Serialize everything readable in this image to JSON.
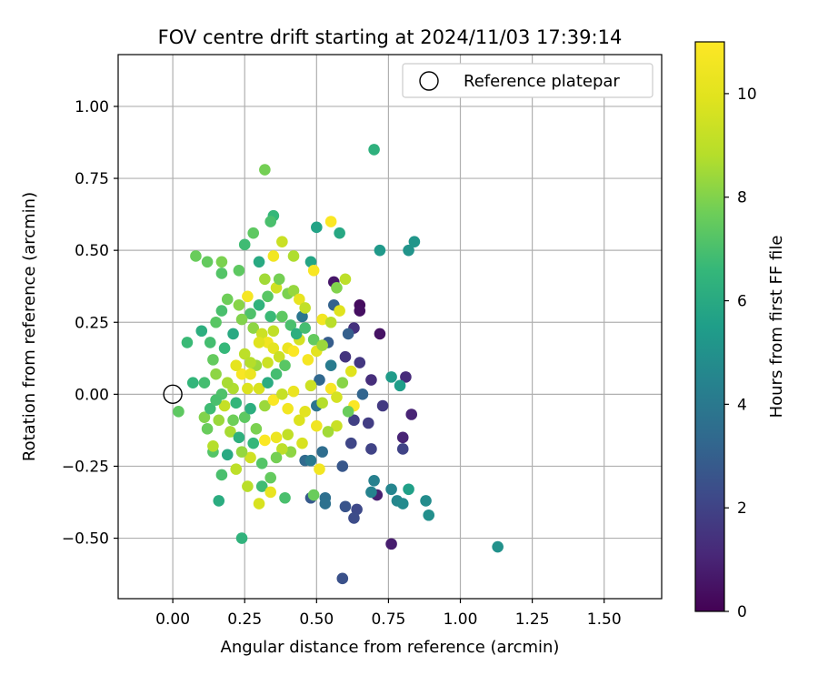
{
  "chart_data": {
    "type": "scatter",
    "title": "FOV centre drift starting at 2024/11/03 17:39:14",
    "xlabel": "Angular distance from reference (arcmin)",
    "ylabel": "Rotation from reference (arcmin)",
    "xlim": [
      -0.19,
      1.7
    ],
    "ylim": [
      -0.71,
      1.18
    ],
    "xticks": [
      0.0,
      0.25,
      0.5,
      0.75,
      1.0,
      1.25,
      1.5
    ],
    "xtick_labels": [
      "0.00",
      "0.25",
      "0.50",
      "0.75",
      "1.00",
      "1.25",
      "1.50"
    ],
    "yticks": [
      -0.5,
      -0.25,
      0.0,
      0.25,
      0.5,
      0.75,
      1.0
    ],
    "ytick_labels": [
      "−0.50",
      "−0.25",
      "0.00",
      "0.25",
      "0.50",
      "0.75",
      "1.00"
    ],
    "grid": true,
    "legend": {
      "placement": "upper-right",
      "entries": [
        {
          "label": "Reference platepar",
          "marker": "open-circle"
        }
      ]
    },
    "reference_point": {
      "x": 0.0,
      "y": 0.0
    },
    "colorbar": {
      "label": "Hours from first FF file",
      "colormap": "viridis",
      "range": [
        0,
        11
      ],
      "ticks": [
        0,
        2,
        4,
        6,
        8,
        10
      ],
      "tick_labels": [
        "0",
        "2",
        "4",
        "6",
        "8",
        "10"
      ]
    },
    "points": [
      {
        "x": 0.65,
        "y": 0.31,
        "c": 0.3
      },
      {
        "x": 0.65,
        "y": 0.29,
        "c": 0.4
      },
      {
        "x": 0.72,
        "y": 0.21,
        "c": 0.5
      },
      {
        "x": 0.56,
        "y": 0.39,
        "c": 0.6
      },
      {
        "x": 0.76,
        "y": -0.52,
        "c": 0.8
      },
      {
        "x": 0.71,
        "y": -0.35,
        "c": 0.9
      },
      {
        "x": 0.8,
        "y": -0.15,
        "c": 1.0
      },
      {
        "x": 0.83,
        "y": -0.07,
        "c": 1.0
      },
      {
        "x": 0.81,
        "y": 0.06,
        "c": 1.2
      },
      {
        "x": 0.69,
        "y": 0.05,
        "c": 1.3
      },
      {
        "x": 0.63,
        "y": 0.23,
        "c": 1.4
      },
      {
        "x": 0.6,
        "y": 0.13,
        "c": 1.5
      },
      {
        "x": 0.65,
        "y": 0.11,
        "c": 1.6
      },
      {
        "x": 0.73,
        "y": -0.04,
        "c": 1.7
      },
      {
        "x": 0.68,
        "y": -0.1,
        "c": 1.8
      },
      {
        "x": 0.63,
        "y": -0.09,
        "c": 1.9
      },
      {
        "x": 0.8,
        "y": -0.19,
        "c": 2.0
      },
      {
        "x": 0.69,
        "y": -0.19,
        "c": 2.0
      },
      {
        "x": 0.62,
        "y": -0.17,
        "c": 2.1
      },
      {
        "x": 0.64,
        "y": -0.4,
        "c": 2.2
      },
      {
        "x": 0.63,
        "y": -0.43,
        "c": 2.3
      },
      {
        "x": 0.59,
        "y": -0.64,
        "c": 2.5
      },
      {
        "x": 0.6,
        "y": -0.39,
        "c": 2.6
      },
      {
        "x": 0.59,
        "y": -0.25,
        "c": 2.7
      },
      {
        "x": 0.48,
        "y": -0.36,
        "c": 2.8
      },
      {
        "x": 0.54,
        "y": 0.18,
        "c": 2.9
      },
      {
        "x": 0.61,
        "y": 0.21,
        "c": 3.0
      },
      {
        "x": 0.56,
        "y": 0.31,
        "c": 3.1
      },
      {
        "x": 0.66,
        "y": 0.0,
        "c": 3.2
      },
      {
        "x": 0.51,
        "y": 0.05,
        "c": 3.3
      },
      {
        "x": 0.46,
        "y": -0.23,
        "c": 3.4
      },
      {
        "x": 0.52,
        "y": -0.2,
        "c": 3.5
      },
      {
        "x": 0.53,
        "y": -0.36,
        "c": 3.6
      },
      {
        "x": 0.53,
        "y": -0.38,
        "c": 3.7
      },
      {
        "x": 0.5,
        "y": -0.04,
        "c": 3.8
      },
      {
        "x": 0.45,
        "y": 0.27,
        "c": 3.9
      },
      {
        "x": 0.48,
        "y": -0.23,
        "c": 4.0
      },
      {
        "x": 0.55,
        "y": 0.1,
        "c": 4.1
      },
      {
        "x": 0.7,
        "y": -0.3,
        "c": 4.3
      },
      {
        "x": 0.69,
        "y": -0.34,
        "c": 4.4
      },
      {
        "x": 0.76,
        "y": -0.33,
        "c": 4.5
      },
      {
        "x": 0.78,
        "y": -0.37,
        "c": 4.6
      },
      {
        "x": 0.8,
        "y": -0.38,
        "c": 4.7
      },
      {
        "x": 0.88,
        "y": -0.37,
        "c": 4.8
      },
      {
        "x": 0.89,
        "y": -0.42,
        "c": 4.9
      },
      {
        "x": 1.13,
        "y": -0.53,
        "c": 5.0
      },
      {
        "x": 0.82,
        "y": 0.5,
        "c": 5.1
      },
      {
        "x": 0.84,
        "y": 0.53,
        "c": 5.2
      },
      {
        "x": 0.72,
        "y": 0.5,
        "c": 5.3
      },
      {
        "x": 0.76,
        "y": 0.06,
        "c": 5.4
      },
      {
        "x": 0.79,
        "y": 0.03,
        "c": 5.5
      },
      {
        "x": 0.82,
        "y": -0.33,
        "c": 5.6
      },
      {
        "x": 0.7,
        "y": 0.85,
        "c": 6.3
      },
      {
        "x": 0.58,
        "y": 0.56,
        "c": 5.9
      },
      {
        "x": 0.5,
        "y": 0.58,
        "c": 5.7
      },
      {
        "x": 0.48,
        "y": 0.46,
        "c": 5.8
      },
      {
        "x": 0.3,
        "y": 0.46,
        "c": 6.0
      },
      {
        "x": 0.35,
        "y": 0.62,
        "c": 6.6
      },
      {
        "x": 0.34,
        "y": 0.6,
        "c": 7.0
      },
      {
        "x": 0.32,
        "y": 0.78,
        "c": 7.8
      },
      {
        "x": 0.28,
        "y": 0.56,
        "c": 7.4
      },
      {
        "x": 0.25,
        "y": 0.52,
        "c": 6.8
      },
      {
        "x": 0.08,
        "y": 0.48,
        "c": 7.6
      },
      {
        "x": 0.12,
        "y": 0.46,
        "c": 7.5
      },
      {
        "x": 0.17,
        "y": 0.46,
        "c": 7.9
      },
      {
        "x": 0.17,
        "y": 0.42,
        "c": 7.2
      },
      {
        "x": 0.23,
        "y": 0.43,
        "c": 7.4
      },
      {
        "x": 0.05,
        "y": 0.18,
        "c": 6.7
      },
      {
        "x": 0.1,
        "y": 0.22,
        "c": 6.2
      },
      {
        "x": 0.07,
        "y": 0.04,
        "c": 6.5
      },
      {
        "x": 0.11,
        "y": 0.04,
        "c": 6.9
      },
      {
        "x": 0.02,
        "y": -0.06,
        "c": 7.4
      },
      {
        "x": 0.11,
        "y": -0.08,
        "c": 8.0
      },
      {
        "x": 0.12,
        "y": -0.12,
        "c": 7.6
      },
      {
        "x": 0.14,
        "y": -0.2,
        "c": 7.2
      },
      {
        "x": 0.14,
        "y": -0.18,
        "c": 8.8
      },
      {
        "x": 0.17,
        "y": -0.28,
        "c": 7.0
      },
      {
        "x": 0.16,
        "y": -0.37,
        "c": 6.1
      },
      {
        "x": 0.24,
        "y": -0.5,
        "c": 6.4
      },
      {
        "x": 0.26,
        "y": -0.32,
        "c": 8.9
      },
      {
        "x": 0.3,
        "y": -0.38,
        "c": 9.7
      },
      {
        "x": 0.31,
        "y": -0.32,
        "c": 6.8
      },
      {
        "x": 0.34,
        "y": -0.29,
        "c": 7.5
      },
      {
        "x": 0.34,
        "y": -0.34,
        "c": 10.2
      },
      {
        "x": 0.39,
        "y": -0.36,
        "c": 7.0
      },
      {
        "x": 0.49,
        "y": -0.35,
        "c": 7.6
      },
      {
        "x": 0.51,
        "y": -0.26,
        "c": 10.6
      },
      {
        "x": 0.32,
        "y": -0.16,
        "c": 10.9
      },
      {
        "x": 0.36,
        "y": -0.15,
        "c": 10.4
      },
      {
        "x": 0.4,
        "y": -0.14,
        "c": 9.1
      },
      {
        "x": 0.27,
        "y": -0.22,
        "c": 9.5
      },
      {
        "x": 0.22,
        "y": -0.26,
        "c": 9.0
      },
      {
        "x": 0.24,
        "y": -0.2,
        "c": 8.3
      },
      {
        "x": 0.2,
        "y": -0.13,
        "c": 8.6
      },
      {
        "x": 0.18,
        "y": -0.04,
        "c": 9.2
      },
      {
        "x": 0.21,
        "y": 0.02,
        "c": 8.7
      },
      {
        "x": 0.24,
        "y": 0.07,
        "c": 10.8
      },
      {
        "x": 0.26,
        "y": 0.02,
        "c": 9.8
      },
      {
        "x": 0.29,
        "y": 0.1,
        "c": 8.4
      },
      {
        "x": 0.28,
        "y": 0.23,
        "c": 8.2
      },
      {
        "x": 0.31,
        "y": 0.21,
        "c": 9.4
      },
      {
        "x": 0.33,
        "y": 0.18,
        "c": 10.5
      },
      {
        "x": 0.35,
        "y": 0.16,
        "c": 10.1
      },
      {
        "x": 0.37,
        "y": 0.13,
        "c": 9.3
      },
      {
        "x": 0.4,
        "y": 0.16,
        "c": 10.3
      },
      {
        "x": 0.42,
        "y": 0.15,
        "c": 10.9
      },
      {
        "x": 0.44,
        "y": 0.19,
        "c": 9.6
      },
      {
        "x": 0.47,
        "y": 0.12,
        "c": 10.7
      },
      {
        "x": 0.5,
        "y": 0.15,
        "c": 10.0
      },
      {
        "x": 0.52,
        "y": 0.26,
        "c": 10.6
      },
      {
        "x": 0.55,
        "y": 0.25,
        "c": 8.9
      },
      {
        "x": 0.58,
        "y": 0.29,
        "c": 9.9
      },
      {
        "x": 0.57,
        "y": 0.37,
        "c": 8.0
      },
      {
        "x": 0.6,
        "y": 0.4,
        "c": 9.0
      },
      {
        "x": 0.55,
        "y": 0.6,
        "c": 10.9
      },
      {
        "x": 0.49,
        "y": 0.43,
        "c": 10.8
      },
      {
        "x": 0.42,
        "y": 0.48,
        "c": 8.7
      },
      {
        "x": 0.38,
        "y": 0.53,
        "c": 9.3
      },
      {
        "x": 0.35,
        "y": 0.48,
        "c": 10.6
      },
      {
        "x": 0.32,
        "y": 0.4,
        "c": 8.5
      },
      {
        "x": 0.36,
        "y": 0.37,
        "c": 9.5
      },
      {
        "x": 0.4,
        "y": 0.35,
        "c": 7.9
      },
      {
        "x": 0.42,
        "y": 0.36,
        "c": 8.3
      },
      {
        "x": 0.44,
        "y": 0.33,
        "c": 10.2
      },
      {
        "x": 0.46,
        "y": 0.3,
        "c": 9.1
      },
      {
        "x": 0.26,
        "y": 0.34,
        "c": 10.7
      },
      {
        "x": 0.23,
        "y": 0.31,
        "c": 8.1
      },
      {
        "x": 0.19,
        "y": 0.33,
        "c": 7.7
      },
      {
        "x": 0.17,
        "y": 0.29,
        "c": 7.0
      },
      {
        "x": 0.15,
        "y": 0.25,
        "c": 7.3
      },
      {
        "x": 0.13,
        "y": 0.18,
        "c": 6.9
      },
      {
        "x": 0.14,
        "y": 0.12,
        "c": 7.5
      },
      {
        "x": 0.15,
        "y": 0.07,
        "c": 8.2
      },
      {
        "x": 0.17,
        "y": 0.0,
        "c": 7.1
      },
      {
        "x": 0.19,
        "y": 0.04,
        "c": 8.6
      },
      {
        "x": 0.22,
        "y": 0.1,
        "c": 10.1
      },
      {
        "x": 0.25,
        "y": 0.14,
        "c": 9.0
      },
      {
        "x": 0.27,
        "y": 0.07,
        "c": 10.4
      },
      {
        "x": 0.3,
        "y": 0.02,
        "c": 9.7
      },
      {
        "x": 0.32,
        "y": -0.04,
        "c": 8.4
      },
      {
        "x": 0.35,
        "y": -0.02,
        "c": 10.9
      },
      {
        "x": 0.38,
        "y": 0.0,
        "c": 9.2
      },
      {
        "x": 0.4,
        "y": -0.05,
        "c": 10.6
      },
      {
        "x": 0.42,
        "y": 0.01,
        "c": 10.3
      },
      {
        "x": 0.44,
        "y": -0.09,
        "c": 9.8
      },
      {
        "x": 0.46,
        "y": -0.06,
        "c": 10.0
      },
      {
        "x": 0.48,
        "y": 0.03,
        "c": 9.4
      },
      {
        "x": 0.5,
        "y": -0.11,
        "c": 10.5
      },
      {
        "x": 0.52,
        "y": -0.03,
        "c": 8.8
      },
      {
        "x": 0.55,
        "y": 0.02,
        "c": 10.8
      },
      {
        "x": 0.57,
        "y": -0.01,
        "c": 9.6
      },
      {
        "x": 0.59,
        "y": 0.04,
        "c": 8.1
      },
      {
        "x": 0.62,
        "y": 0.08,
        "c": 9.9
      },
      {
        "x": 0.63,
        "y": -0.04,
        "c": 10.9
      },
      {
        "x": 0.61,
        "y": -0.06,
        "c": 7.6
      },
      {
        "x": 0.57,
        "y": -0.11,
        "c": 9.3
      },
      {
        "x": 0.54,
        "y": -0.13,
        "c": 8.5
      },
      {
        "x": 0.45,
        "y": -0.17,
        "c": 9.7
      },
      {
        "x": 0.41,
        "y": -0.2,
        "c": 8.2
      },
      {
        "x": 0.38,
        "y": -0.19,
        "c": 9.0
      },
      {
        "x": 0.36,
        "y": -0.22,
        "c": 7.8
      },
      {
        "x": 0.31,
        "y": -0.24,
        "c": 7.2
      },
      {
        "x": 0.28,
        "y": -0.17,
        "c": 6.6
      },
      {
        "x": 0.29,
        "y": -0.12,
        "c": 7.9
      },
      {
        "x": 0.25,
        "y": -0.08,
        "c": 7.4
      },
      {
        "x": 0.23,
        "y": -0.15,
        "c": 6.3
      },
      {
        "x": 0.21,
        "y": -0.09,
        "c": 7.7
      },
      {
        "x": 0.19,
        "y": -0.21,
        "c": 6.0
      },
      {
        "x": 0.16,
        "y": -0.09,
        "c": 8.4
      },
      {
        "x": 0.13,
        "y": -0.05,
        "c": 6.8
      },
      {
        "x": 0.15,
        "y": -0.02,
        "c": 7.0
      },
      {
        "x": 0.22,
        "y": -0.03,
        "c": 6.5
      },
      {
        "x": 0.27,
        "y": -0.05,
        "c": 6.2
      },
      {
        "x": 0.33,
        "y": 0.04,
        "c": 6.1
      },
      {
        "x": 0.36,
        "y": 0.07,
        "c": 6.9
      },
      {
        "x": 0.39,
        "y": 0.1,
        "c": 7.3
      },
      {
        "x": 0.34,
        "y": 0.27,
        "c": 6.7
      },
      {
        "x": 0.3,
        "y": 0.31,
        "c": 6.4
      },
      {
        "x": 0.27,
        "y": 0.28,
        "c": 7.1
      },
      {
        "x": 0.21,
        "y": 0.21,
        "c": 6.0
      },
      {
        "x": 0.18,
        "y": 0.16,
        "c": 6.6
      },
      {
        "x": 0.24,
        "y": 0.26,
        "c": 8.0
      },
      {
        "x": 0.38,
        "y": 0.27,
        "c": 7.4
      },
      {
        "x": 0.41,
        "y": 0.24,
        "c": 7.0
      },
      {
        "x": 0.43,
        "y": 0.21,
        "c": 6.2
      },
      {
        "x": 0.46,
        "y": 0.23,
        "c": 6.9
      },
      {
        "x": 0.49,
        "y": 0.19,
        "c": 7.5
      },
      {
        "x": 0.52,
        "y": 0.17,
        "c": 8.4
      },
      {
        "x": 0.37,
        "y": 0.4,
        "c": 7.8
      },
      {
        "x": 0.33,
        "y": 0.34,
        "c": 7.3
      },
      {
        "x": 0.3,
        "y": 0.18,
        "c": 9.9
      },
      {
        "x": 0.27,
        "y": 0.11,
        "c": 8.8
      },
      {
        "x": 0.33,
        "y": 0.11,
        "c": 9.4
      },
      {
        "x": 0.35,
        "y": 0.22,
        "c": 9.1
      }
    ]
  }
}
